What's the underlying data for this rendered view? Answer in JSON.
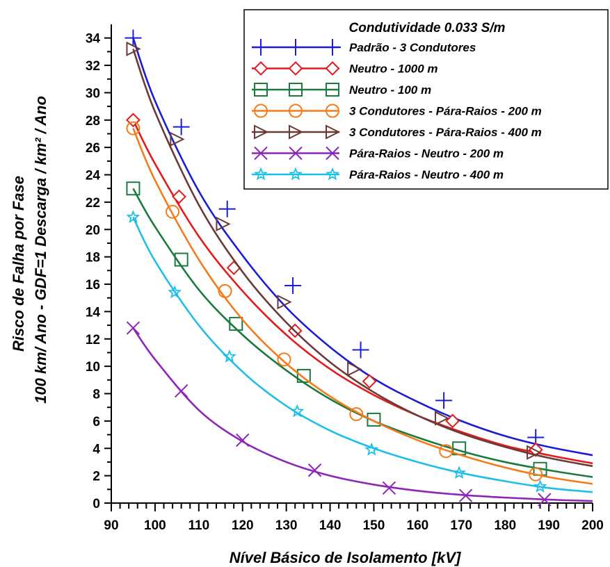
{
  "chart_data": {
    "type": "line",
    "title": "",
    "xlabel": "Nível Básico de Isolamento [kV]",
    "ylabel": [
      "Risco de Falha por Fase",
      "100 km/ Ano - GDF=1 Descarga / km² / Ano"
    ],
    "xlim": [
      90,
      200
    ],
    "ylim": [
      0,
      35
    ],
    "xticks": [
      90,
      100,
      110,
      120,
      130,
      140,
      150,
      160,
      170,
      180,
      190,
      200
    ],
    "yticks": [
      0,
      2,
      4,
      6,
      8,
      10,
      12,
      14,
      16,
      18,
      20,
      22,
      24,
      26,
      28,
      30,
      32,
      34
    ],
    "grid": false,
    "legend": {
      "title": "Condutividade 0.033 S/m",
      "position": "top-right"
    },
    "series": [
      {
        "name": "Padrão - 3 Condutores",
        "color": "#1c1cd6",
        "marker": "plus",
        "x": [
          95,
          100,
          110,
          120,
          130,
          140,
          150,
          160,
          170,
          180,
          190,
          200
        ],
        "y": [
          34.0,
          29.4,
          22.8,
          18.1,
          14.3,
          11.4,
          9.1,
          7.4,
          6.0,
          4.9,
          4.1,
          3.5
        ],
        "marker_x": [
          95,
          106,
          116.5,
          131.5,
          147,
          166,
          187
        ],
        "marker_y": [
          34.0,
          27.5,
          21.5,
          15.9,
          11.2,
          7.5,
          4.8
        ]
      },
      {
        "name": "Neutro - 1000 m",
        "color": "#e41a1a",
        "marker": "diamond",
        "x": [
          95,
          100,
          110,
          120,
          130,
          140,
          150,
          160,
          170,
          180,
          190,
          200
        ],
        "y": [
          28.0,
          24.8,
          19.5,
          15.5,
          12.3,
          9.8,
          7.9,
          6.4,
          5.2,
          4.2,
          3.5,
          2.9
        ],
        "marker_x": [
          95,
          105.5,
          118,
          132,
          149,
          168,
          187
        ],
        "marker_y": [
          28.0,
          22.4,
          17.2,
          12.6,
          8.9,
          6.0,
          3.9
        ]
      },
      {
        "name": "Neutro - 100 m",
        "color": "#1b7a3e",
        "marker": "square",
        "x": [
          95,
          100,
          110,
          120,
          130,
          140,
          150,
          160,
          170,
          180,
          190,
          200
        ],
        "y": [
          23.0,
          20.2,
          15.6,
          12.3,
          9.7,
          7.6,
          6.0,
          4.8,
          3.8,
          3.0,
          2.4,
          1.9
        ],
        "marker_x": [
          95,
          106,
          118.5,
          134,
          150,
          169.5,
          188
        ],
        "marker_y": [
          23.0,
          17.8,
          13.1,
          9.3,
          6.1,
          4.0,
          2.5
        ]
      },
      {
        "name": "3 Condutores - Pára-Raios - 200 m",
        "color": "#f47a1a",
        "marker": "circle",
        "x": [
          95,
          100,
          110,
          120,
          130,
          140,
          150,
          160,
          170,
          180,
          190,
          200
        ],
        "y": [
          27.4,
          23.6,
          17.8,
          13.4,
          10.2,
          7.8,
          6.0,
          4.6,
          3.5,
          2.6,
          1.9,
          1.4
        ],
        "marker_x": [
          95,
          104,
          116,
          129.5,
          146,
          166.5,
          187
        ],
        "marker_y": [
          27.4,
          21.3,
          15.5,
          10.5,
          6.5,
          3.8,
          2.1
        ]
      },
      {
        "name": "3 Condutores - Pára-Raios - 400 m",
        "color": "#6b3a37",
        "marker": "triangle-right",
        "x": [
          95,
          100,
          110,
          120,
          130,
          140,
          150,
          160,
          170,
          180,
          190,
          200
        ],
        "y": [
          33.2,
          28.6,
          21.8,
          16.9,
          13.2,
          10.3,
          8.1,
          6.4,
          5.1,
          4.1,
          3.3,
          2.7
        ],
        "marker_x": [
          95,
          105,
          115.5,
          129.5,
          145.5,
          165.5,
          186.5
        ],
        "marker_y": [
          33.2,
          26.6,
          20.4,
          14.7,
          9.8,
          6.2,
          3.7
        ]
      },
      {
        "name": "Pára-Raios - Neutro - 200 m",
        "color": "#8e25b8",
        "marker": "x",
        "x": [
          95,
          100,
          110,
          120,
          130,
          140,
          150,
          160,
          170,
          180,
          190,
          200
        ],
        "y": [
          12.8,
          10.5,
          6.8,
          4.5,
          3.0,
          2.0,
          1.35,
          0.9,
          0.6,
          0.4,
          0.25,
          0.15
        ],
        "marker_x": [
          95,
          106,
          120,
          136.5,
          153.5,
          171,
          189
        ],
        "marker_y": [
          12.8,
          8.2,
          4.6,
          2.4,
          1.1,
          0.55,
          0.25
        ]
      },
      {
        "name": "Pára-Raios - Neutro - 400 m",
        "color": "#1dbfe8",
        "marker": "star",
        "x": [
          95,
          100,
          110,
          120,
          130,
          140,
          150,
          160,
          170,
          180,
          190,
          200
        ],
        "y": [
          20.9,
          17.7,
          13.0,
          9.6,
          7.1,
          5.3,
          4.0,
          3.0,
          2.2,
          1.6,
          1.1,
          0.8
        ],
        "marker_x": [
          95,
          104.5,
          117,
          132.5,
          149.5,
          169.5,
          188
        ],
        "marker_y": [
          20.9,
          15.4,
          10.7,
          6.7,
          3.9,
          2.2,
          1.2
        ]
      }
    ]
  }
}
